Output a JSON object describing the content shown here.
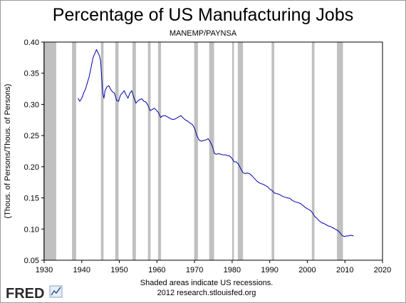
{
  "chart_data": {
    "type": "line",
    "title": "Percentage of US Manufacturing Jobs",
    "subtitle": "MANEMP/PAYNSA",
    "ylabel": "(Thous. of Persons/Thous. of Persons)",
    "xlabel": "",
    "xlim": [
      1930,
      2020
    ],
    "ylim": [
      0.05,
      0.4
    ],
    "x_ticks": [
      "1930",
      "1940",
      "1950",
      "1960",
      "1970",
      "1980",
      "1990",
      "2000",
      "2010",
      "2020"
    ],
    "y_ticks": [
      "0.05",
      "0.10",
      "0.15",
      "0.20",
      "0.25",
      "0.30",
      "0.35",
      "0.40"
    ],
    "grid": false,
    "line_color": "#0000aa",
    "recession_color": "#c0c0c0",
    "recessions": [
      [
        1929.7,
        1933.2
      ],
      [
        1937.4,
        1938.5
      ],
      [
        1945.1,
        1945.8
      ],
      [
        1948.9,
        1949.8
      ],
      [
        1953.5,
        1954.4
      ],
      [
        1957.6,
        1958.3
      ],
      [
        1960.3,
        1961.1
      ],
      [
        1969.9,
        1970.9
      ],
      [
        1973.9,
        1975.2
      ],
      [
        1980.0,
        1980.5
      ],
      [
        1981.5,
        1982.9
      ],
      [
        1990.5,
        1991.2
      ],
      [
        2001.2,
        2001.9
      ],
      [
        2007.9,
        2009.5
      ]
    ],
    "series": [
      {
        "values": [
          [
            1939.0,
            0.31
          ],
          [
            1939.5,
            0.305
          ],
          [
            1940.0,
            0.31
          ],
          [
            1940.5,
            0.318
          ],
          [
            1941.0,
            0.325
          ],
          [
            1941.5,
            0.335
          ],
          [
            1942.0,
            0.345
          ],
          [
            1942.5,
            0.36
          ],
          [
            1943.0,
            0.375
          ],
          [
            1943.5,
            0.382
          ],
          [
            1943.9,
            0.388
          ],
          [
            1944.3,
            0.383
          ],
          [
            1944.7,
            0.378
          ],
          [
            1945.0,
            0.37
          ],
          [
            1945.3,
            0.345
          ],
          [
            1945.6,
            0.318
          ],
          [
            1945.9,
            0.31
          ],
          [
            1946.2,
            0.322
          ],
          [
            1946.7,
            0.328
          ],
          [
            1947.2,
            0.33
          ],
          [
            1947.7,
            0.324
          ],
          [
            1948.2,
            0.32
          ],
          [
            1948.7,
            0.318
          ],
          [
            1949.3,
            0.306
          ],
          [
            1949.8,
            0.305
          ],
          [
            1950.3,
            0.315
          ],
          [
            1950.8,
            0.318
          ],
          [
            1951.3,
            0.322
          ],
          [
            1951.8,
            0.315
          ],
          [
            1952.3,
            0.31
          ],
          [
            1952.8,
            0.318
          ],
          [
            1953.3,
            0.322
          ],
          [
            1953.8,
            0.312
          ],
          [
            1954.4,
            0.302
          ],
          [
            1955.0,
            0.306
          ],
          [
            1955.5,
            0.308
          ],
          [
            1956.0,
            0.309
          ],
          [
            1956.5,
            0.305
          ],
          [
            1957.0,
            0.304
          ],
          [
            1957.5,
            0.3
          ],
          [
            1958.2,
            0.29
          ],
          [
            1958.8,
            0.292
          ],
          [
            1959.3,
            0.294
          ],
          [
            1959.8,
            0.291
          ],
          [
            1960.4,
            0.287
          ],
          [
            1961.0,
            0.279
          ],
          [
            1961.6,
            0.282
          ],
          [
            1962.2,
            0.282
          ],
          [
            1962.8,
            0.28
          ],
          [
            1963.4,
            0.278
          ],
          [
            1964.0,
            0.276
          ],
          [
            1964.6,
            0.276
          ],
          [
            1965.2,
            0.278
          ],
          [
            1965.8,
            0.28
          ],
          [
            1966.4,
            0.282
          ],
          [
            1967.0,
            0.278
          ],
          [
            1967.6,
            0.275
          ],
          [
            1968.2,
            0.273
          ],
          [
            1968.8,
            0.27
          ],
          [
            1969.4,
            0.268
          ],
          [
            1970.0,
            0.262
          ],
          [
            1970.6,
            0.25
          ],
          [
            1971.2,
            0.243
          ],
          [
            1971.8,
            0.241
          ],
          [
            1972.4,
            0.242
          ],
          [
            1973.0,
            0.243
          ],
          [
            1973.6,
            0.245
          ],
          [
            1974.2,
            0.24
          ],
          [
            1974.8,
            0.232
          ],
          [
            1975.3,
            0.221
          ],
          [
            1975.8,
            0.22
          ],
          [
            1976.4,
            0.221
          ],
          [
            1977.0,
            0.22
          ],
          [
            1977.6,
            0.219
          ],
          [
            1978.2,
            0.219
          ],
          [
            1978.8,
            0.218
          ],
          [
            1979.4,
            0.217
          ],
          [
            1980.0,
            0.213
          ],
          [
            1980.5,
            0.208
          ],
          [
            1981.0,
            0.208
          ],
          [
            1981.6,
            0.205
          ],
          [
            1982.2,
            0.198
          ],
          [
            1982.8,
            0.191
          ],
          [
            1983.4,
            0.189
          ],
          [
            1984.0,
            0.19
          ],
          [
            1984.6,
            0.189
          ],
          [
            1985.2,
            0.186
          ],
          [
            1985.8,
            0.182
          ],
          [
            1986.4,
            0.178
          ],
          [
            1987.0,
            0.175
          ],
          [
            1987.6,
            0.173
          ],
          [
            1988.2,
            0.172
          ],
          [
            1988.8,
            0.17
          ],
          [
            1989.4,
            0.168
          ],
          [
            1990.0,
            0.164
          ],
          [
            1990.6,
            0.162
          ],
          [
            1991.2,
            0.158
          ],
          [
            1991.8,
            0.157
          ],
          [
            1992.4,
            0.156
          ],
          [
            1993.0,
            0.154
          ],
          [
            1993.6,
            0.152
          ],
          [
            1994.2,
            0.151
          ],
          [
            1994.8,
            0.15
          ],
          [
            1995.4,
            0.149
          ],
          [
            1996.0,
            0.146
          ],
          [
            1996.6,
            0.144
          ],
          [
            1997.2,
            0.143
          ],
          [
            1997.8,
            0.142
          ],
          [
            1998.4,
            0.14
          ],
          [
            1999.0,
            0.137
          ],
          [
            1999.6,
            0.134
          ],
          [
            2000.2,
            0.132
          ],
          [
            2000.8,
            0.13
          ],
          [
            2001.4,
            0.126
          ],
          [
            2002.0,
            0.12
          ],
          [
            2002.6,
            0.117
          ],
          [
            2003.2,
            0.113
          ],
          [
            2003.8,
            0.11
          ],
          [
            2004.4,
            0.109
          ],
          [
            2005.0,
            0.107
          ],
          [
            2005.6,
            0.105
          ],
          [
            2006.2,
            0.104
          ],
          [
            2006.8,
            0.102
          ],
          [
            2007.4,
            0.1
          ],
          [
            2008.0,
            0.098
          ],
          [
            2008.6,
            0.095
          ],
          [
            2009.2,
            0.09
          ],
          [
            2009.8,
            0.088
          ],
          [
            2010.4,
            0.089
          ],
          [
            2011.0,
            0.089
          ],
          [
            2011.6,
            0.09
          ],
          [
            2012.3,
            0.089
          ]
        ]
      }
    ]
  },
  "footer": {
    "note_line1": "Shaded areas indicate US recessions.",
    "note_line2": "2012 research.stlouisfed.org"
  },
  "logo": {
    "text": "FRED"
  }
}
